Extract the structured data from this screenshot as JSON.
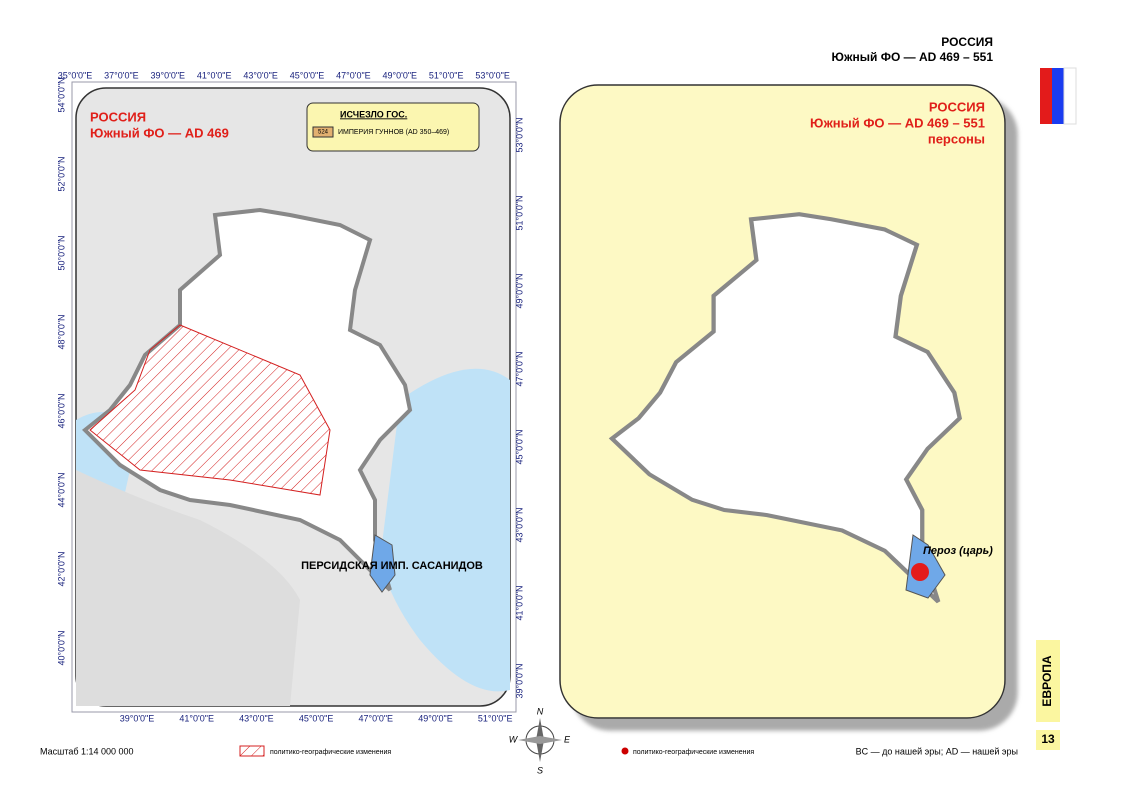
{
  "header": {
    "country": "РОССИЯ",
    "region": "Южный ФО — AD 469 – 551"
  },
  "left_map": {
    "title": "РОССИЯ",
    "subtitle": "Южный ФО — AD 469",
    "legend": {
      "title": "ИСЧЕЗЛО ГОС.",
      "code": "524",
      "item": "ИМПЕРИЯ ГУННОВ (AD 350–469)"
    },
    "label": "ПЕРСИДСКАЯ ИМП. САСАНИДОВ",
    "top_ticks": [
      "35°0'0\"E",
      "37°0'0\"E",
      "39°0'0\"E",
      "41°0'0\"E",
      "43°0'0\"E",
      "45°0'0\"E",
      "47°0'0\"E",
      "49°0'0\"E",
      "51°0'0\"E",
      "53°0'0\"E"
    ],
    "bottom_ticks": [
      "39°0'0\"E",
      "41°0'0\"E",
      "43°0'0\"E",
      "45°0'0\"E",
      "47°0'0\"E",
      "49°0'0\"E",
      "51°0'0\"E"
    ],
    "left_ticks": [
      "54°0'0\"N",
      "52°0'0\"N",
      "50°0'0\"N",
      "48°0'0\"N",
      "46°0'0\"N",
      "44°0'0\"N",
      "42°0'0\"N",
      "40°0'0\"N"
    ],
    "right_ticks": [
      "53°0'0\"N",
      "51°0'0\"N",
      "49°0'0\"N",
      "47°0'0\"N",
      "45°0'0\"N",
      "43°0'0\"N",
      "41°0'0\"N",
      "39°0'0\"N"
    ]
  },
  "right_map": {
    "title": "РОССИЯ",
    "subtitle": "Южный ФО — AD 469 – 551",
    "note": "персоны",
    "person": "Пероз (царь)"
  },
  "footer": {
    "scale": "Масштаб 1:14 000 000",
    "legend_left": "политико-географические изменения",
    "legend_right": "политико-географические изменения",
    "era": "BC — до нашей эры; AD — нашей эры"
  },
  "compass": {
    "n": "N",
    "s": "S",
    "e": "E",
    "w": "W"
  },
  "side": {
    "section": "ЕВРОПА",
    "page": "13"
  }
}
